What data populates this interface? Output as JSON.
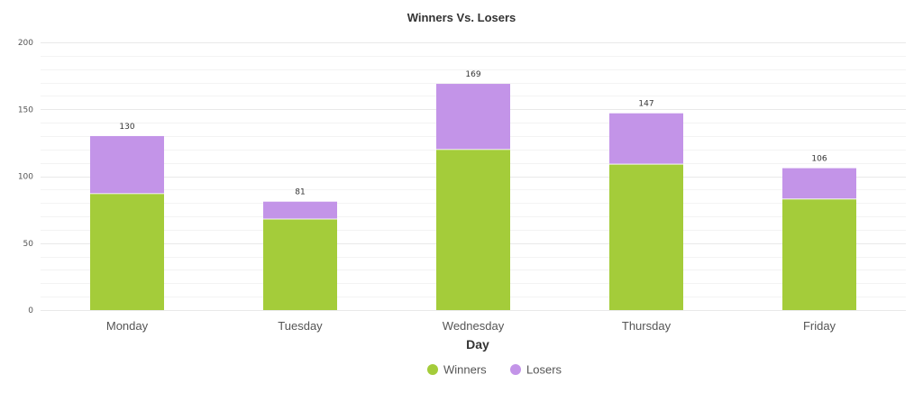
{
  "chart_data": {
    "type": "bar",
    "stacked": true,
    "title": "Winners Vs. Losers",
    "xlabel": "Day",
    "ylabel": "",
    "categories": [
      "Monday",
      "Tuesday",
      "Wednesday",
      "Thursday",
      "Friday"
    ],
    "series": [
      {
        "name": "Winners",
        "color": "#a4cc3a",
        "values": [
          87,
          68,
          120,
          109,
          83
        ]
      },
      {
        "name": "Losers",
        "color": "#c394e8",
        "values": [
          43,
          13,
          49,
          38,
          23
        ]
      }
    ],
    "totals": [
      130,
      81,
      169,
      147,
      106
    ],
    "ylim": [
      0,
      200
    ],
    "yticks": [
      0,
      50,
      100,
      150,
      200
    ],
    "grid": true,
    "legend_position": "bottom-center"
  }
}
